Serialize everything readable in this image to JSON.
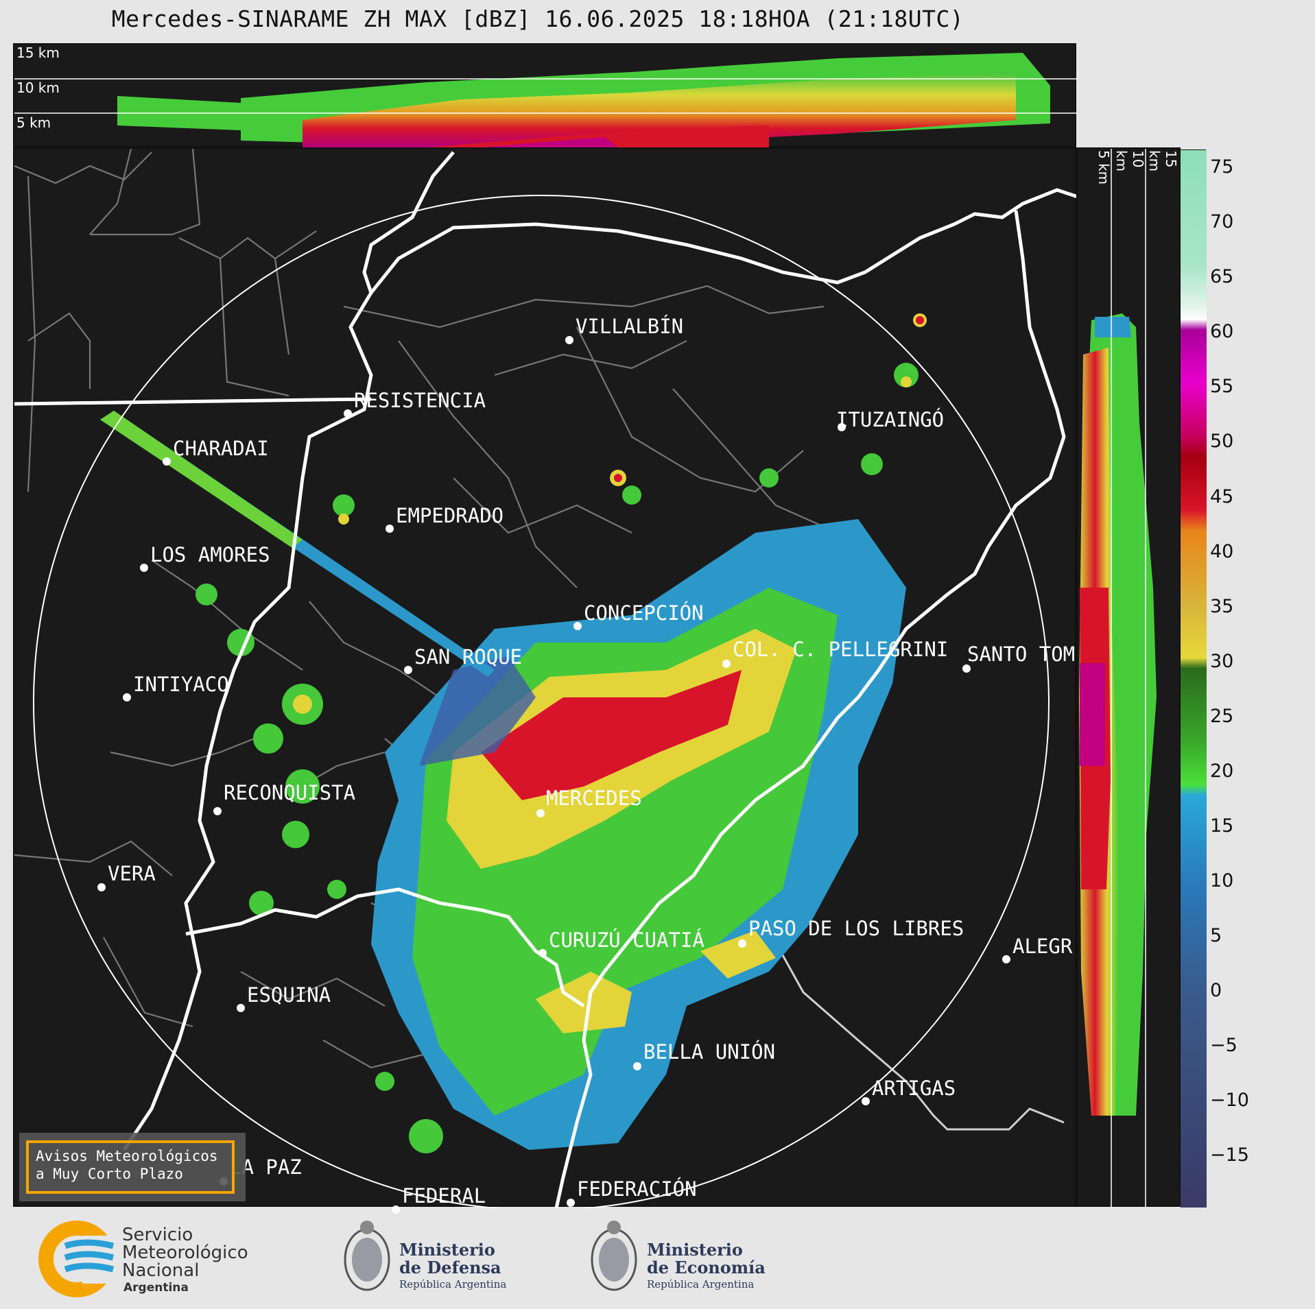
{
  "title": "Mercedes-SINARAME ZH MAX [dBZ] 16.06.2025 18:18HOA (21:18UTC)",
  "altitude_labels": [
    "15 km",
    "10 km",
    "5 km"
  ],
  "side_labels": [
    "5 km",
    "10 km",
    "15 km"
  ],
  "cities": [
    {
      "name": "VILLALBÍN"
    },
    {
      "name": "RESISTENCIA"
    },
    {
      "name": "CHARADAI"
    },
    {
      "name": "ITUZAINGÓ"
    },
    {
      "name": "EMPEDRADO"
    },
    {
      "name": "LOS AMORES"
    },
    {
      "name": "CONCEPCIÓN"
    },
    {
      "name": "SAN ROQUE"
    },
    {
      "name": "COL. C. PELLEGRINI"
    },
    {
      "name": "SANTO TOM"
    },
    {
      "name": "INTIYACO"
    },
    {
      "name": "MERCEDES"
    },
    {
      "name": "RECONQUISTA"
    },
    {
      "name": "VERA"
    },
    {
      "name": "CURUZÚ CUATIÁ"
    },
    {
      "name": "PASO DE LOS LIBRES"
    },
    {
      "name": "ALEGR"
    },
    {
      "name": "ESQUINA"
    },
    {
      "name": "BELLA UNIÓN"
    },
    {
      "name": "ARTIGAS"
    },
    {
      "name": "LA PAZ"
    },
    {
      "name": "FEDERAL"
    },
    {
      "name": "FEDERACIÓN"
    }
  ],
  "colorbar": {
    "ticks": [
      "75",
      "70",
      "65",
      "60",
      "55",
      "50",
      "45",
      "40",
      "35",
      "30",
      "25",
      "20",
      "15",
      "10",
      "5",
      "0",
      "−5",
      "−10",
      "−15"
    ]
  },
  "warning": {
    "line1": "Avisos Meteorológicos",
    "line2": "a Muy Corto Plazo"
  },
  "footer": {
    "smn_line1": "Servicio",
    "smn_line2": "Meteorológico",
    "smn_line3": "Nacional",
    "smn_line4": "Argentina",
    "defensa_line1": "Ministerio",
    "defensa_line2": "de Defensa",
    "defensa_line3": "República Argentina",
    "economia_line1": "Ministerio",
    "economia_line2": "de Economía",
    "economia_line3": "República Argentina"
  },
  "colors": {
    "background": "#1a1a1a",
    "page": "#e6e6e6",
    "accent": "#f5a500"
  }
}
